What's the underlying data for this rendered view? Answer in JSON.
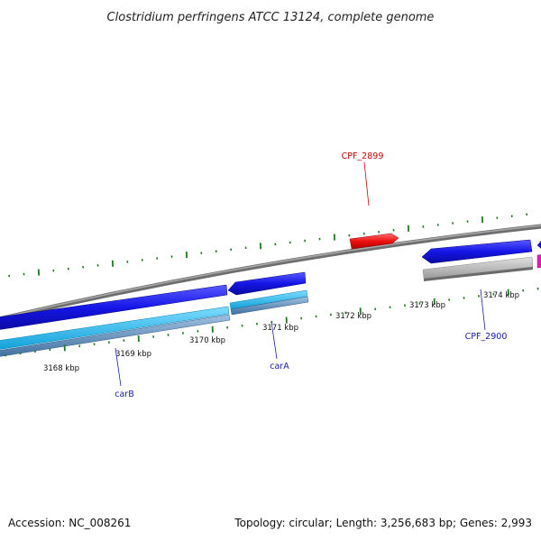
{
  "title": "Clostridium perfringens ATCC 13124, complete genome",
  "ticks": [
    {
      "label": "3168 kbp"
    },
    {
      "label": "3169 kbp"
    },
    {
      "label": "3170 kbp"
    },
    {
      "label": "3171 kbp"
    },
    {
      "label": "3172 kbp"
    },
    {
      "label": "3173 kbp"
    },
    {
      "label": "3174 kbp"
    }
  ],
  "genes": [
    {
      "name": "CPF_2899",
      "color": "#cc0000"
    },
    {
      "name": "CPF_2900",
      "color": "#1a1aa6"
    },
    {
      "name": "carA",
      "color": "#1a1aa6"
    },
    {
      "name": "carB",
      "color": "#1a1aa6"
    }
  ],
  "colors": {
    "backbone": "#808080",
    "forward_cds": "#ff2020",
    "reverse_cds": "#1515e6",
    "cyan_track": "#18b4ee",
    "steel_track": "#5b8fc0",
    "gray_track": "#b4b4b4",
    "magenta": "#e020b0",
    "tick_marks": "#1e7a1e"
  },
  "footer": {
    "accession": "Accession: NC_008261",
    "stats": "Topology: circular; Length: 3,256,683 bp; Genes: 2,993"
  }
}
